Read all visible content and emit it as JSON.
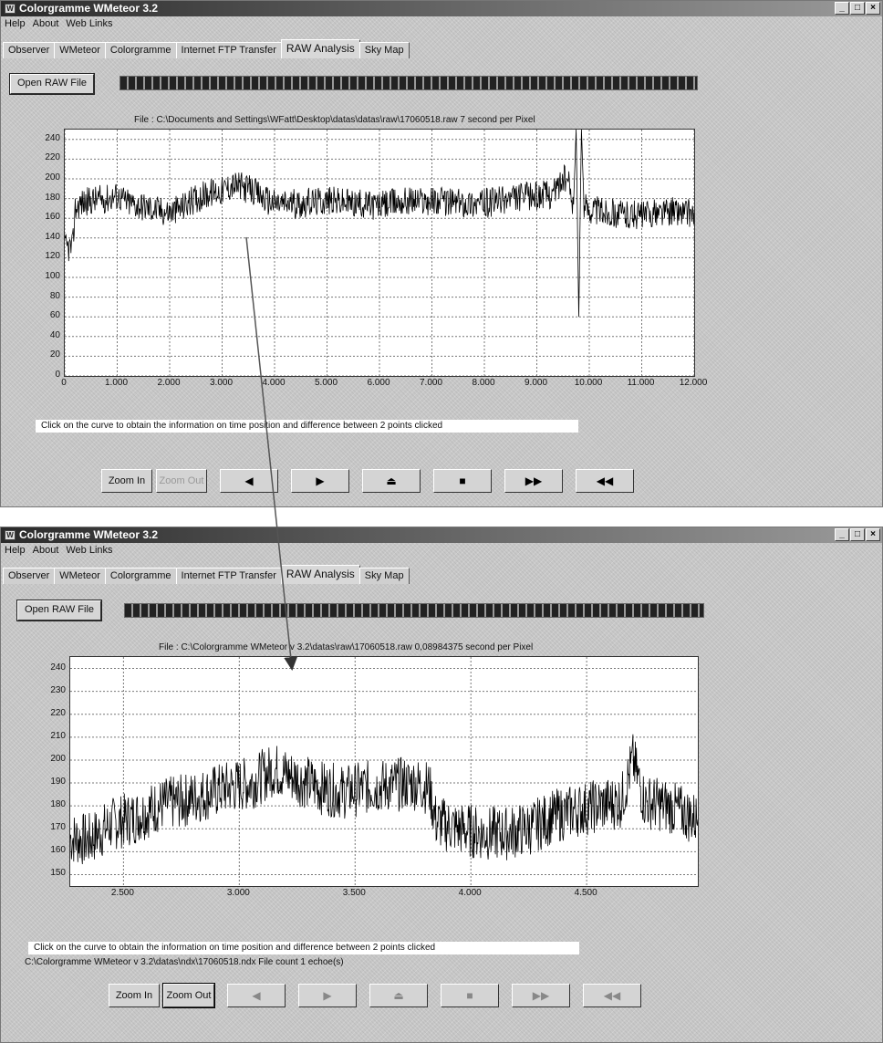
{
  "windows": [
    {
      "title": "Colorgramme WMeteor 3.2",
      "menu": [
        "Help",
        "About",
        "Web Links"
      ],
      "tabs": [
        "Observer",
        "WMeteor",
        "Colorgramme",
        "Internet FTP Transfer",
        "RAW Analysis",
        "Sky Map"
      ],
      "active_tab": "RAW Analysis",
      "open_button": "Open RAW File",
      "file_label": "File : C:\\Documents and Settings\\WFatt\\Desktop\\datas\\datas\\raw\\17060518.raw   7 second per Pixel",
      "hint": "Click on the curve to obtain the information on time position and difference between 2 points clicked",
      "status": "",
      "buttons": {
        "zoom_in": "Zoom In",
        "zoom_out": "Zoom Out"
      }
    },
    {
      "title": "Colorgramme WMeteor 3.2",
      "menu": [
        "Help",
        "About",
        "Web Links"
      ],
      "tabs": [
        "Observer",
        "WMeteor",
        "Colorgramme",
        "Internet FTP Transfer",
        "RAW Analysis",
        "Sky Map"
      ],
      "active_tab": "RAW Analysis",
      "open_button": "Open RAW File",
      "file_label": "File : C:\\Colorgramme WMeteor v 3.2\\datas\\raw\\17060518.raw    0,08984375 second per Pixel",
      "hint": "Click on the curve to obtain the information on time position and difference between 2 points clicked",
      "status": "C:\\Colorgramme WMeteor v 3.2\\datas\\ndx\\17060518.ndx    File count 1 echoe(s)",
      "buttons": {
        "zoom_in": "Zoom In",
        "zoom_out": "Zoom Out"
      }
    }
  ],
  "icons": [
    "play-icon",
    "pause-icon",
    "eject-icon",
    "stop-icon",
    "fast-forward-icon",
    "rewind-icon"
  ],
  "chart_data": [
    {
      "type": "line",
      "title": "File : C:\\Documents and Settings\\WFatt\\Desktop\\datas\\datas\\raw\\17060518.raw   7 second per Pixel",
      "xlabel": "",
      "ylabel": "",
      "xlim": [
        0,
        12000
      ],
      "ylim": [
        0,
        250
      ],
      "xticks": [
        "0",
        "1.000",
        "2.000",
        "3.000",
        "4.000",
        "5.000",
        "6.000",
        "7.000",
        "8.000",
        "9.000",
        "10.000",
        "11.000",
        "12.000"
      ],
      "yticks": [
        "0",
        "20",
        "40",
        "60",
        "80",
        "100",
        "120",
        "140",
        "160",
        "180",
        "200",
        "220",
        "240"
      ],
      "grid": true,
      "series": [
        {
          "x": [
            0,
            150,
            200,
            300,
            500,
            800,
            1000,
            1200,
            1500,
            1800,
            2000,
            2200,
            2500,
            2800,
            3000,
            3200,
            3500,
            3800,
            4000,
            4500,
            5000,
            5500,
            6000,
            6500,
            7000,
            7500,
            8000,
            8500,
            9000,
            9300,
            9500,
            9600,
            9700,
            9750,
            9800,
            9850,
            9900,
            10000,
            10500,
            11000,
            11500,
            12000
          ],
          "y": [
            130,
            130,
            170,
            175,
            178,
            180,
            183,
            176,
            172,
            168,
            166,
            170,
            180,
            186,
            188,
            194,
            190,
            180,
            175,
            175,
            178,
            175,
            173,
            178,
            178,
            176,
            175,
            180,
            183,
            185,
            200,
            196,
            174,
            250,
            60,
            250,
            172,
            170,
            165,
            163,
            167,
            166
          ]
        }
      ]
    },
    {
      "type": "line",
      "title": "File : C:\\Colorgramme WMeteor v 3.2\\datas\\raw\\17060518.raw    0,08984375 second per Pixel",
      "xlabel": "",
      "ylabel": "",
      "xlim": [
        2270,
        4980
      ],
      "ylim": [
        145,
        245
      ],
      "xticks": [
        "2.500",
        "3.000",
        "3.500",
        "4.000",
        "4.500"
      ],
      "yticks": [
        "150",
        "160",
        "170",
        "180",
        "190",
        "200",
        "210",
        "220",
        "230",
        "240"
      ],
      "grid": true,
      "series": [
        {
          "x": [
            2270,
            2350,
            2450,
            2550,
            2650,
            2750,
            2850,
            2950,
            3050,
            3150,
            3250,
            3350,
            3450,
            3550,
            3650,
            3750,
            3820,
            3850,
            3950,
            4050,
            4150,
            4250,
            4350,
            4450,
            4550,
            4650,
            4700,
            4750,
            4850,
            4980
          ],
          "y": [
            166,
            165,
            172,
            175,
            180,
            182,
            185,
            188,
            190,
            196,
            192,
            188,
            186,
            188,
            189,
            190,
            188,
            173,
            170,
            168,
            168,
            170,
            175,
            178,
            180,
            182,
            200,
            182,
            180,
            174
          ]
        }
      ]
    }
  ]
}
